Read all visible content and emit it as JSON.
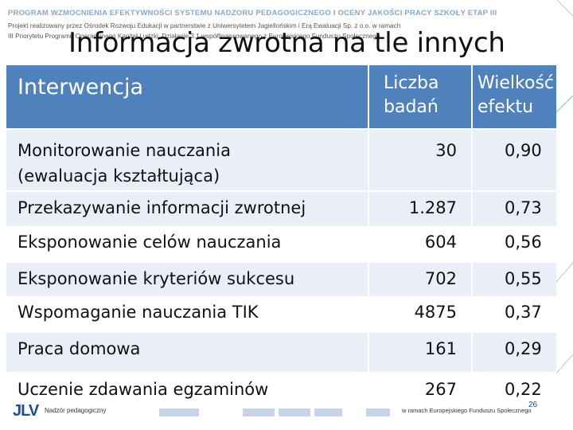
{
  "header": {
    "program_title": "PROGRAM WZMOCNIENIA EFEKTYWNOŚCI SYSTEMU NADZORU PEDAGOGICZNEGO I OCENY JAKOŚCI PRACY SZKOŁY ETAP III",
    "line1": "Projekt realizowany przez Ośrodek Rozwoju Edukacji w partnerstwie z Uniwersytetem Jagiellońskim i Erą Ewaluacji Sp. z o.o. w ramach",
    "line2": "III Priorytetu Programu Operacyjnego Kapitał Ludzki, Działanie 3.1 współfinansowanego z Europejskiego Funduszu Społecznego"
  },
  "slide_title": "Informacja zwrotna na tle innych",
  "table": {
    "headers": {
      "intervention": "Interwencja",
      "count_line1": "Liczba",
      "count_line2": "badań",
      "effect_line1": "Wielkość",
      "effect_line2": "efektu"
    },
    "rows": [
      {
        "label_line1": "Monitorowanie nauczania",
        "label_line2": "(ewaluacja kształtująca)",
        "count": "30",
        "effect": "0,90"
      },
      {
        "label_line1": "Przekazywanie informacji zwrotnej",
        "label_line2": "",
        "count": "1.287",
        "effect": "0,73"
      },
      {
        "label_line1": "Eksponowanie celów nauczania",
        "label_line2": "",
        "count": "604",
        "effect": "0,56"
      },
      {
        "label_line1": "Eksponowanie kryteriów sukcesu",
        "label_line2": "",
        "count": "702",
        "effect": "0,55"
      },
      {
        "label_line1": "Wspomaganie nauczania TIK",
        "label_line2": "",
        "count": "4875",
        "effect": "0,37"
      },
      {
        "label_line1": "Praca domowa",
        "label_line2": "",
        "count": "161",
        "effect": "0,29"
      },
      {
        "label_line1": "Uczenie zdawania egzaminów",
        "label_line2": "",
        "count": "267",
        "effect": "0,22"
      }
    ]
  },
  "footer": {
    "logo_text": "ЈLV",
    "logo_caption": "Nadzór pedagogiczny",
    "sponsor_text": "w ramach Europejskiego Funduszu Społecznego",
    "page_number": "26"
  },
  "colors": {
    "header_fill": "#4f81bd",
    "alt_row_fill": "#e9eef7",
    "program_title": "#8aa6cc"
  }
}
